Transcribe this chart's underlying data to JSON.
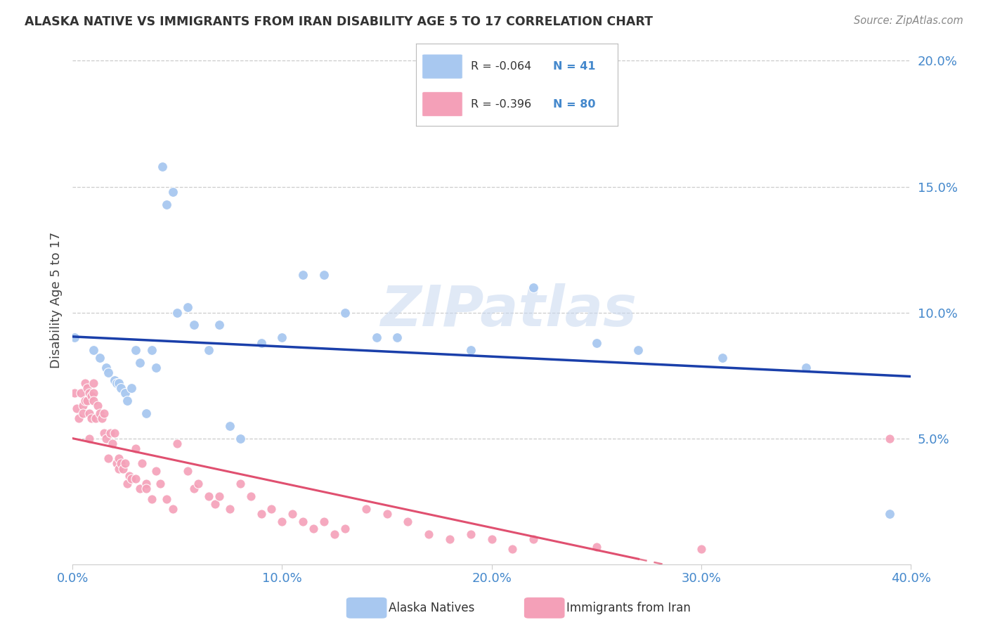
{
  "title": "ALASKA NATIVE VS IMMIGRANTS FROM IRAN DISABILITY AGE 5 TO 17 CORRELATION CHART",
  "source": "Source: ZipAtlas.com",
  "ylabel": "Disability Age 5 to 17",
  "legend_label1": "Alaska Natives",
  "legend_label2": "Immigrants from Iran",
  "R1": -0.064,
  "N1": 41,
  "R2": -0.396,
  "N2": 80,
  "color1": "#A8C8F0",
  "color2": "#F4A0B8",
  "line_color1": "#1A3FAA",
  "line_color2": "#E05070",
  "xlim": [
    0.0,
    0.4
  ],
  "ylim": [
    0.0,
    0.21
  ],
  "xticks": [
    0.0,
    0.1,
    0.2,
    0.3,
    0.4
  ],
  "yticks": [
    0.05,
    0.1,
    0.15,
    0.2
  ],
  "alaska_x": [
    0.001,
    0.01,
    0.013,
    0.016,
    0.017,
    0.02,
    0.021,
    0.022,
    0.023,
    0.025,
    0.026,
    0.028,
    0.03,
    0.032,
    0.035,
    0.038,
    0.04,
    0.043,
    0.045,
    0.048,
    0.05,
    0.055,
    0.058,
    0.065,
    0.07,
    0.075,
    0.08,
    0.09,
    0.1,
    0.11,
    0.12,
    0.13,
    0.145,
    0.155,
    0.19,
    0.22,
    0.25,
    0.27,
    0.31,
    0.35,
    0.39
  ],
  "alaska_y": [
    0.09,
    0.085,
    0.082,
    0.078,
    0.076,
    0.073,
    0.072,
    0.072,
    0.07,
    0.068,
    0.065,
    0.07,
    0.085,
    0.08,
    0.06,
    0.085,
    0.078,
    0.158,
    0.143,
    0.148,
    0.1,
    0.102,
    0.095,
    0.085,
    0.095,
    0.055,
    0.05,
    0.088,
    0.09,
    0.115,
    0.115,
    0.1,
    0.09,
    0.09,
    0.085,
    0.11,
    0.088,
    0.085,
    0.082,
    0.078,
    0.02
  ],
  "iran_x": [
    0.001,
    0.002,
    0.003,
    0.004,
    0.005,
    0.005,
    0.006,
    0.006,
    0.007,
    0.007,
    0.008,
    0.008,
    0.008,
    0.009,
    0.009,
    0.01,
    0.01,
    0.01,
    0.011,
    0.012,
    0.013,
    0.014,
    0.015,
    0.015,
    0.016,
    0.017,
    0.018,
    0.019,
    0.02,
    0.021,
    0.022,
    0.022,
    0.023,
    0.024,
    0.025,
    0.026,
    0.027,
    0.028,
    0.03,
    0.03,
    0.032,
    0.033,
    0.035,
    0.035,
    0.038,
    0.04,
    0.042,
    0.045,
    0.048,
    0.05,
    0.055,
    0.058,
    0.06,
    0.065,
    0.068,
    0.07,
    0.075,
    0.08,
    0.085,
    0.09,
    0.095,
    0.1,
    0.105,
    0.11,
    0.115,
    0.12,
    0.125,
    0.13,
    0.14,
    0.15,
    0.16,
    0.17,
    0.18,
    0.19,
    0.2,
    0.21,
    0.22,
    0.25,
    0.3,
    0.39
  ],
  "iran_y": [
    0.068,
    0.062,
    0.058,
    0.068,
    0.063,
    0.06,
    0.072,
    0.065,
    0.07,
    0.065,
    0.06,
    0.068,
    0.05,
    0.067,
    0.058,
    0.072,
    0.068,
    0.065,
    0.058,
    0.063,
    0.06,
    0.058,
    0.06,
    0.052,
    0.05,
    0.042,
    0.052,
    0.048,
    0.052,
    0.04,
    0.042,
    0.038,
    0.04,
    0.038,
    0.04,
    0.032,
    0.035,
    0.034,
    0.046,
    0.034,
    0.03,
    0.04,
    0.032,
    0.03,
    0.026,
    0.037,
    0.032,
    0.026,
    0.022,
    0.048,
    0.037,
    0.03,
    0.032,
    0.027,
    0.024,
    0.027,
    0.022,
    0.032,
    0.027,
    0.02,
    0.022,
    0.017,
    0.02,
    0.017,
    0.014,
    0.017,
    0.012,
    0.014,
    0.022,
    0.02,
    0.017,
    0.012,
    0.01,
    0.012,
    0.01,
    0.006,
    0.01,
    0.007,
    0.006,
    0.05
  ],
  "watermark": "ZIPatlas",
  "background_color": "#FFFFFF",
  "grid_color": "#CCCCCC",
  "label_color": "#4488CC",
  "title_color": "#333333",
  "ylabel_color": "#444444"
}
